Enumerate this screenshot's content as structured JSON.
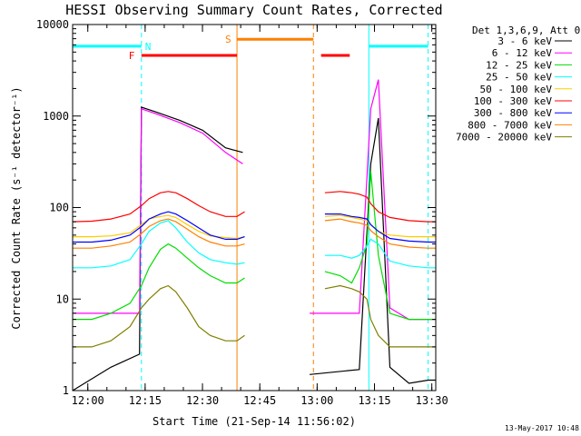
{
  "chart_data": {
    "type": "line",
    "title": "HESSI Observing Summary Count Rates, Corrected",
    "xlabel": "Start Time (21-Sep-14 11:56:02)",
    "ylabel": "Corrected Count Rate (s⁻¹ detector⁻¹)",
    "yscale": "log",
    "ylim": [
      1,
      10000
    ],
    "xlim_minutes": [
      0,
      95
    ],
    "x_tick_labels": [
      "12:00",
      "12:15",
      "12:30",
      "12:45",
      "13:00",
      "13:15",
      "13:30"
    ],
    "x_tick_minutes": [
      3.97,
      18.97,
      33.97,
      48.97,
      63.97,
      78.97,
      93.97
    ],
    "y_tick_labels": [
      "1",
      "10",
      "100",
      "1000",
      "10000"
    ],
    "y_tick_values": [
      1,
      10,
      100,
      1000,
      10000
    ],
    "legend_header": "Det 1,3,6,9, Att 0",
    "legend_position": "outside-right",
    "date_stamp": "13-May-2017 10:48",
    "series": [
      {
        "name": "3 - 6 keV",
        "color": "#000000",
        "x": [
          0,
          10,
          17.5,
          18,
          22,
          28,
          34,
          40,
          44.5,
          45,
          60,
          62,
          75,
          78,
          80,
          83,
          88,
          93,
          95
        ],
        "y": [
          1,
          1.8,
          2.5,
          1250,
          1100,
          900,
          700,
          450,
          400,
          null,
          null,
          1.5,
          1.7,
          300,
          950,
          1.8,
          1.2,
          1.3,
          1.3
        ]
      },
      {
        "name": "6 - 12 keV",
        "color": "#ff00ff",
        "x": [
          0,
          10,
          17.5,
          18,
          22,
          28,
          34,
          40,
          44.5,
          45,
          60,
          62,
          75,
          78,
          80,
          83,
          88,
          93,
          95
        ],
        "y": [
          7,
          7,
          7,
          1200,
          1050,
          850,
          650,
          400,
          300,
          null,
          null,
          7,
          7,
          1200,
          2500,
          8,
          6,
          6,
          6
        ]
      },
      {
        "name": "12 - 25 keV",
        "color": "#00dd00",
        "x": [
          0,
          5,
          10,
          15,
          18,
          20,
          23,
          25,
          27,
          30,
          33,
          36,
          40,
          43,
          45,
          60,
          62,
          66,
          70,
          73,
          75,
          77,
          78,
          80,
          83,
          88,
          93,
          95
        ],
        "y": [
          6,
          6,
          7,
          9,
          14,
          22,
          35,
          40,
          36,
          28,
          22,
          18,
          15,
          15,
          17,
          null,
          null,
          20,
          18,
          15,
          22,
          40,
          250,
          30,
          7,
          6,
          6,
          6
        ]
      },
      {
        "name": "25 - 50 keV",
        "color": "#00ffff",
        "x": [
          0,
          5,
          10,
          15,
          18,
          20,
          23,
          25,
          27,
          30,
          33,
          36,
          40,
          43,
          45,
          60,
          62,
          66,
          70,
          73,
          75,
          77,
          78,
          80,
          83,
          88,
          93,
          95
        ],
        "y": [
          22,
          22,
          23,
          27,
          40,
          55,
          68,
          72,
          60,
          42,
          32,
          27,
          25,
          24,
          25,
          null,
          null,
          30,
          30,
          28,
          30,
          38,
          45,
          40,
          26,
          23,
          22,
          22
        ]
      },
      {
        "name": "50 - 100 keV",
        "color": "#ffcc00",
        "x": [
          0,
          5,
          10,
          15,
          18,
          20,
          23,
          25,
          27,
          30,
          33,
          36,
          40,
          43,
          45,
          60,
          62,
          66,
          70,
          73,
          75,
          77,
          78,
          80,
          83,
          88,
          93,
          95
        ],
        "y": [
          48,
          48,
          49,
          53,
          65,
          75,
          80,
          82,
          78,
          65,
          55,
          49,
          47,
          46,
          48,
          null,
          null,
          80,
          82,
          78,
          75,
          72,
          65,
          55,
          50,
          48,
          48,
          48
        ]
      },
      {
        "name": "100 - 300 keV",
        "color": "#ff0000",
        "x": [
          0,
          5,
          10,
          15,
          18,
          20,
          23,
          25,
          27,
          30,
          33,
          36,
          40,
          43,
          45,
          60,
          62,
          66,
          70,
          73,
          75,
          77,
          78,
          80,
          83,
          88,
          93,
          95
        ],
        "y": [
          70,
          71,
          75,
          85,
          105,
          125,
          145,
          150,
          145,
          125,
          105,
          90,
          80,
          80,
          90,
          null,
          null,
          145,
          150,
          145,
          140,
          130,
          110,
          90,
          78,
          72,
          70,
          70
        ]
      },
      {
        "name": "300 - 800 keV",
        "color": "#0000ff",
        "x": [
          0,
          5,
          10,
          15,
          18,
          20,
          23,
          25,
          27,
          30,
          33,
          36,
          40,
          43,
          45,
          60,
          62,
          66,
          70,
          73,
          75,
          77,
          78,
          80,
          83,
          88,
          93,
          95
        ],
        "y": [
          42,
          42,
          44,
          50,
          62,
          75,
          85,
          90,
          85,
          72,
          60,
          50,
          45,
          45,
          48,
          null,
          null,
          85,
          85,
          80,
          78,
          75,
          65,
          55,
          46,
          43,
          42,
          42
        ]
      },
      {
        "name": "800 - 7000 keV",
        "color": "#ff7f00",
        "x": [
          0,
          5,
          10,
          15,
          18,
          20,
          23,
          25,
          27,
          30,
          33,
          36,
          40,
          43,
          45,
          60,
          62,
          66,
          70,
          73,
          75,
          77,
          78,
          80,
          83,
          88,
          93,
          95
        ],
        "y": [
          36,
          36,
          38,
          42,
          52,
          62,
          72,
          75,
          70,
          58,
          48,
          42,
          38,
          38,
          40,
          null,
          null,
          72,
          75,
          70,
          68,
          64,
          56,
          48,
          40,
          37,
          36,
          36
        ]
      },
      {
        "name": "7000 - 20000 keV",
        "color": "#7f7f00",
        "x": [
          0,
          5,
          10,
          15,
          18,
          20,
          23,
          25,
          27,
          30,
          33,
          36,
          40,
          43,
          45,
          60,
          62,
          66,
          70,
          73,
          75,
          77,
          78,
          80,
          83,
          88,
          93,
          95
        ],
        "y": [
          3,
          3,
          3.5,
          5,
          8,
          10,
          13,
          14,
          12,
          8,
          5,
          4,
          3.5,
          3.5,
          4,
          null,
          null,
          13,
          14,
          13,
          12,
          10,
          6,
          4,
          3,
          3,
          3,
          3
        ]
      }
    ],
    "flags": [
      {
        "label": "N",
        "color": "#00ffff",
        "label_color": "#00ffff",
        "y": 5800,
        "segments": [
          [
            0,
            18
          ],
          [
            77.5,
            93
          ]
        ]
      },
      {
        "label": "F",
        "color": "#ff0000",
        "label_color": "#ff0000",
        "y": 4600,
        "segments": [
          [
            18,
            43
          ],
          [
            65,
            72.5
          ]
        ]
      },
      {
        "label": "S",
        "color": "#ff7f00",
        "label_color": "#ff7f00",
        "y": 6900,
        "segments": [
          [
            43,
            63
          ]
        ]
      }
    ],
    "vertical_markers": [
      {
        "x": 0,
        "color": "#00ffff",
        "dashed": false
      },
      {
        "x": 18,
        "color": "#00ffff",
        "dashed": true
      },
      {
        "x": 43,
        "color": "#ff7f00",
        "dashed": false
      },
      {
        "x": 63,
        "color": "#ff7f00",
        "dashed": true
      },
      {
        "x": 77.5,
        "color": "#00ffff",
        "dashed": false
      },
      {
        "x": 93,
        "color": "#00ffff",
        "dashed": true
      }
    ]
  }
}
